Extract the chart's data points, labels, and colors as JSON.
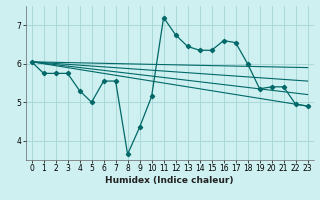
{
  "xlabel": "Humidex (Indice chaleur)",
  "bg_color": "#cff0f0",
  "grid_color": "#aad8d8",
  "line_color": "#006868",
  "xlim": [
    -0.5,
    23.5
  ],
  "ylim": [
    3.5,
    7.5
  ],
  "yticks": [
    4,
    5,
    6,
    7
  ],
  "xticks": [
    0,
    1,
    2,
    3,
    4,
    5,
    6,
    7,
    8,
    9,
    10,
    11,
    12,
    13,
    14,
    15,
    16,
    17,
    18,
    19,
    20,
    21,
    22,
    23
  ],
  "main_series": {
    "x": [
      0,
      1,
      2,
      3,
      4,
      5,
      6,
      7,
      8,
      9,
      10,
      11,
      12,
      13,
      14,
      15,
      16,
      17,
      18,
      19,
      20,
      21,
      22,
      23
    ],
    "y": [
      6.05,
      5.75,
      5.75,
      5.75,
      5.3,
      5.0,
      5.55,
      5.55,
      3.65,
      4.35,
      5.15,
      7.2,
      6.75,
      6.45,
      6.35,
      6.35,
      6.6,
      6.55,
      6.0,
      5.35,
      5.4,
      5.4,
      4.95,
      4.9
    ]
  },
  "trend_lines": [
    {
      "x": [
        0,
        23
      ],
      "y": [
        6.05,
        5.9
      ]
    },
    {
      "x": [
        0,
        23
      ],
      "y": [
        6.05,
        5.55
      ]
    },
    {
      "x": [
        0,
        23
      ],
      "y": [
        6.05,
        5.2
      ]
    },
    {
      "x": [
        0,
        23
      ],
      "y": [
        6.05,
        4.9
      ]
    }
  ]
}
